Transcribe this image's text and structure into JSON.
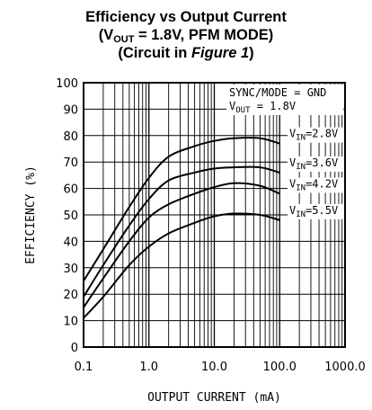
{
  "chart_data": {
    "type": "line",
    "title_line1": "Efficiency vs Output Current",
    "title_line2_pre": "(V",
    "title_line2_sub": "OUT",
    "title_line2_post": " = 1.8V, PFM MODE)",
    "title_line3_pre": "(Circuit in ",
    "title_line3_em": "Figure 1",
    "title_line3_post": ")",
    "xlabel": "OUTPUT CURRENT (mA)",
    "ylabel": "EFFICIENCY (%)",
    "xscale": "log",
    "xlim": [
      0.1,
      1000
    ],
    "ylim": [
      0,
      100
    ],
    "grid": true,
    "x_ticks": [
      "0.1",
      "1.0",
      "10.0",
      "100.0",
      "1000.0"
    ],
    "y_ticks": [
      "0",
      "10",
      "20",
      "30",
      "40",
      "50",
      "60",
      "70",
      "80",
      "90",
      "100"
    ],
    "annotation_line1": "SYNC/MODE = GND",
    "annotation_line2_pre": "V",
    "annotation_line2_sub": "OUT",
    "annotation_line2_post": " = 1.8V",
    "series": [
      {
        "label_pre": "V",
        "label_sub": "IN",
        "label_post": "=2.8V",
        "x": [
          0.1,
          0.2,
          0.5,
          1,
          2,
          5,
          10,
          20,
          50,
          100
        ],
        "y": [
          25,
          37,
          53,
          64,
          72,
          76,
          78,
          79,
          79,
          77
        ]
      },
      {
        "label_pre": "V",
        "label_sub": "IN",
        "label_post": "=3.6V",
        "x": [
          0.1,
          0.2,
          0.5,
          1,
          2,
          5,
          10,
          20,
          50,
          100
        ],
        "y": [
          19,
          31,
          46,
          56,
          63,
          66,
          67.5,
          68,
          68,
          66
        ]
      },
      {
        "label_pre": "V",
        "label_sub": "IN",
        "label_post": "=4.2V",
        "x": [
          0.1,
          0.2,
          0.5,
          1,
          2,
          5,
          10,
          20,
          50,
          100
        ],
        "y": [
          15,
          26,
          40,
          49,
          54,
          58,
          60.5,
          62,
          61,
          58
        ]
      },
      {
        "label_pre": "V",
        "label_sub": "IN",
        "label_post": "=5.5V",
        "x": [
          0.1,
          0.2,
          0.5,
          1,
          2,
          5,
          10,
          20,
          50,
          100
        ],
        "y": [
          11,
          19,
          31,
          38,
          43,
          47,
          49.5,
          50.5,
          50,
          48
        ]
      }
    ]
  }
}
